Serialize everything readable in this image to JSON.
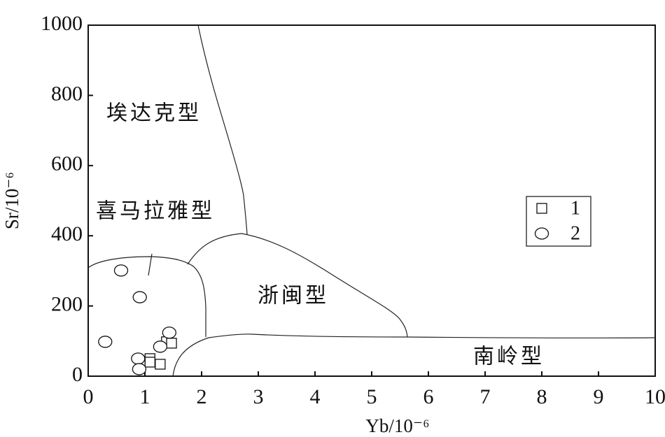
{
  "chart_data": {
    "type": "scatter",
    "x_label": "Yb/10⁻⁶",
    "y_label": "Sr/10⁻⁶",
    "xlim": [
      0,
      10
    ],
    "xticks": [
      0,
      1,
      2,
      3,
      4,
      5,
      6,
      7,
      8,
      9,
      10
    ],
    "ylim": [
      0,
      1000
    ],
    "yticks": [
      0,
      200,
      400,
      600,
      800,
      1000
    ],
    "grid": false,
    "series": [
      {
        "name": "1",
        "marker": "square",
        "color": "#111111",
        "x": [
          1.09,
          1.09,
          1.27,
          1.38,
          1.47
        ],
        "values": [
          50,
          40,
          34,
          98,
          94
        ]
      },
      {
        "name": "2",
        "marker": "circle",
        "color": "#111111",
        "x": [
          0.58,
          0.91,
          0.3,
          0.88,
          0.9,
          1.27,
          1.43
        ],
        "values": [
          301,
          225,
          98,
          50,
          20,
          84,
          124
        ]
      }
    ],
    "annotations": [
      "埃达克型",
      "喜马拉雅型",
      "浙闽型",
      "南岭型"
    ]
  }
}
